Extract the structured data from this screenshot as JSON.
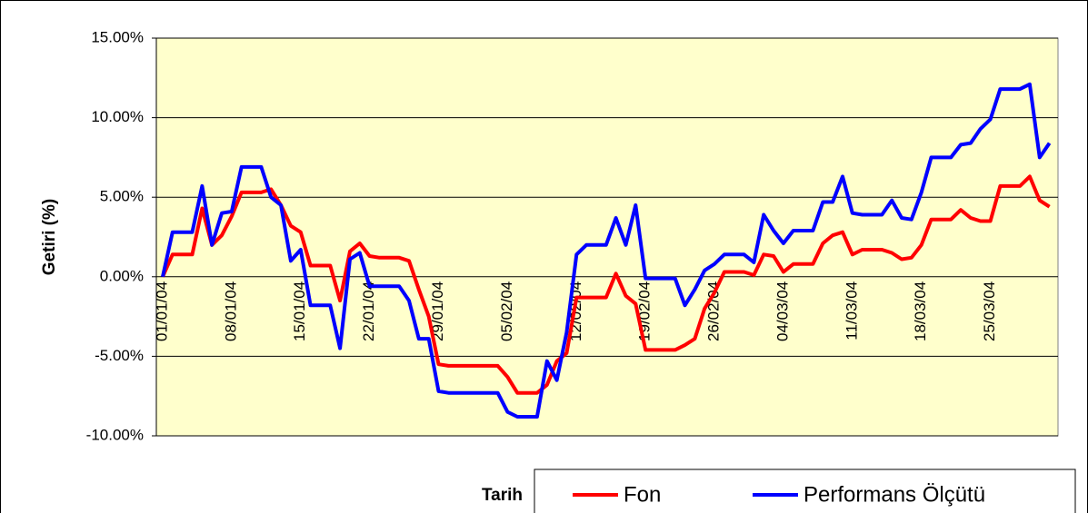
{
  "chart_data": {
    "type": "line",
    "ylabel": "Getiri (%)",
    "xlabel": "Tarih",
    "categories": [
      "01/01/04",
      null,
      null,
      null,
      null,
      null,
      null,
      "08/01/04",
      null,
      null,
      null,
      null,
      null,
      null,
      "15/01/04",
      null,
      null,
      null,
      null,
      null,
      null,
      "22/01/04",
      null,
      null,
      null,
      null,
      null,
      null,
      "29/01/04",
      null,
      null,
      null,
      null,
      null,
      null,
      "05/02/04",
      null,
      null,
      null,
      null,
      null,
      null,
      "12/02/04",
      null,
      null,
      null,
      null,
      null,
      null,
      "19/02/04",
      null,
      null,
      null,
      null,
      null,
      null,
      "26/02/04",
      null,
      null,
      null,
      null,
      null,
      null,
      "04/03/04",
      null,
      null,
      null,
      null,
      null,
      null,
      "11/03/04",
      null,
      null,
      null,
      null,
      null,
      null,
      "18/03/04",
      null,
      null,
      null,
      null,
      null,
      null,
      "25/03/04",
      null,
      null,
      null,
      null,
      null,
      null
    ],
    "series": [
      {
        "name": "Fon",
        "color": "#ff0000",
        "values": [
          0,
          1.4,
          1.4,
          1.4,
          4.3,
          2.0,
          2.6,
          3.8,
          5.3,
          5.3,
          5.3,
          5.5,
          4.5,
          3.2,
          2.8,
          0.7,
          0.7,
          0.7,
          -1.5,
          1.6,
          2.1,
          1.3,
          1.2,
          1.2,
          1.2,
          1.0,
          -0.8,
          -2.5,
          -5.5,
          -5.6,
          -5.6,
          -5.6,
          -5.6,
          -5.6,
          -5.6,
          -6.3,
          -7.3,
          -7.3,
          -7.3,
          -6.8,
          -5.3,
          -4.8,
          -1.3,
          -1.3,
          -1.3,
          -1.3,
          0.2,
          -1.2,
          -1.7,
          -4.6,
          -4.6,
          -4.6,
          -4.6,
          -4.3,
          -3.9,
          -2.0,
          -1.0,
          0.3,
          0.3,
          0.3,
          0.1,
          1.4,
          1.3,
          0.3,
          0.8,
          0.8,
          0.8,
          2.1,
          2.6,
          2.8,
          1.4,
          1.7,
          1.7,
          1.7,
          1.5,
          1.1,
          1.2,
          2.0,
          3.6,
          3.6,
          3.6,
          4.2,
          3.7,
          3.5,
          3.5,
          5.7,
          5.7,
          5.7,
          6.3,
          4.8,
          4.4
        ]
      },
      {
        "name": "Performans Ölçütü",
        "color": "#0000ff",
        "values": [
          0,
          2.8,
          2.8,
          2.8,
          5.7,
          2.0,
          4.0,
          4.1,
          6.9,
          6.9,
          6.9,
          5.0,
          4.5,
          1.0,
          1.7,
          -1.8,
          -1.8,
          -1.8,
          -4.5,
          1.1,
          1.5,
          -0.6,
          -0.6,
          -0.6,
          -0.6,
          -1.5,
          -3.9,
          -3.9,
          -7.2,
          -7.3,
          -7.3,
          -7.3,
          -7.3,
          -7.3,
          -7.3,
          -8.5,
          -8.8,
          -8.8,
          -8.8,
          -5.3,
          -6.5,
          -3.5,
          1.4,
          2.0,
          2.0,
          2.0,
          3.7,
          2.0,
          4.5,
          -0.1,
          -0.1,
          -0.1,
          -0.1,
          -1.8,
          -0.8,
          0.4,
          0.8,
          1.4,
          1.4,
          1.4,
          0.9,
          3.9,
          2.9,
          2.1,
          2.9,
          2.9,
          2.9,
          4.7,
          4.7,
          6.3,
          4.0,
          3.9,
          3.9,
          3.9,
          4.8,
          3.7,
          3.6,
          5.3,
          7.5,
          7.5,
          7.5,
          8.3,
          8.4,
          9.3,
          9.9,
          11.8,
          11.8,
          11.8,
          12.1,
          7.5,
          8.4
        ]
      }
    ],
    "ylim": [
      -10,
      15
    ],
    "yticks": [
      {
        "value": -10,
        "label": "-10.00%"
      },
      {
        "value": -5,
        "label": "-5.00%"
      },
      {
        "value": 0,
        "label": "0.00%"
      },
      {
        "value": 5,
        "label": "5.00%"
      },
      {
        "value": 10,
        "label": "10.00%"
      },
      {
        "value": 15,
        "label": "15.00%"
      }
    ],
    "grid": true,
    "legend": "bottom-right"
  }
}
